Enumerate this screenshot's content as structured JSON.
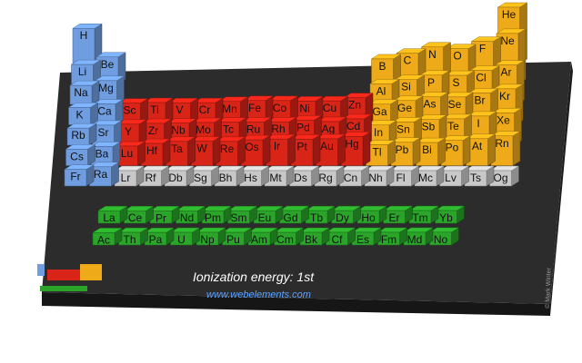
{
  "caption": {
    "title": "Ionization energy: 1st",
    "url": "www.webelements.com"
  },
  "copyright": "© Mark Winter",
  "colors": {
    "s_block": "#6f9de0",
    "d_block": "#d92418",
    "p_block": "#eeaa18",
    "f_block": "#2aa52a",
    "unmeasured": "#c8c8c8",
    "board": "#2c2c2c"
  },
  "main_table": {
    "rows": [
      {
        "period": 1,
        "elements": [
          {
            "symbol": "H",
            "group": 1,
            "block": "s",
            "value": 1312
          },
          {
            "symbol": "He",
            "group": 18,
            "block": "p",
            "value": 2372
          }
        ]
      },
      {
        "period": 2,
        "elements": [
          {
            "symbol": "Li",
            "group": 1,
            "block": "s",
            "value": 520
          },
          {
            "symbol": "Be",
            "group": 2,
            "block": "s",
            "value": 900
          },
          {
            "symbol": "B",
            "group": 13,
            "block": "p",
            "value": 801
          },
          {
            "symbol": "C",
            "group": 14,
            "block": "p",
            "value": 1086
          },
          {
            "symbol": "N",
            "group": 15,
            "block": "p",
            "value": 1402
          },
          {
            "symbol": "O",
            "group": 16,
            "block": "p",
            "value": 1314
          },
          {
            "symbol": "F",
            "group": 17,
            "block": "p",
            "value": 1681
          },
          {
            "symbol": "Ne",
            "group": 18,
            "block": "p",
            "value": 2081
          }
        ]
      },
      {
        "period": 3,
        "elements": [
          {
            "symbol": "Na",
            "group": 1,
            "block": "s",
            "value": 496
          },
          {
            "symbol": "Mg",
            "group": 2,
            "block": "s",
            "value": 738
          },
          {
            "symbol": "Al",
            "group": 13,
            "block": "p",
            "value": 578
          },
          {
            "symbol": "Si",
            "group": 14,
            "block": "p",
            "value": 787
          },
          {
            "symbol": "P",
            "group": 15,
            "block": "p",
            "value": 1012
          },
          {
            "symbol": "S",
            "group": 16,
            "block": "p",
            "value": 1000
          },
          {
            "symbol": "Cl",
            "group": 17,
            "block": "p",
            "value": 1251
          },
          {
            "symbol": "Ar",
            "group": 18,
            "block": "p",
            "value": 1521
          }
        ]
      },
      {
        "period": 4,
        "elements": [
          {
            "symbol": "K",
            "group": 1,
            "block": "s",
            "value": 419
          },
          {
            "symbol": "Ca",
            "group": 2,
            "block": "s",
            "value": 590
          },
          {
            "symbol": "Sc",
            "group": 3,
            "block": "d",
            "value": 633
          },
          {
            "symbol": "Ti",
            "group": 4,
            "block": "d",
            "value": 659
          },
          {
            "symbol": "V",
            "group": 5,
            "block": "d",
            "value": 651
          },
          {
            "symbol": "Cr",
            "group": 6,
            "block": "d",
            "value": 653
          },
          {
            "symbol": "Mn",
            "group": 7,
            "block": "d",
            "value": 717
          },
          {
            "symbol": "Fe",
            "group": 8,
            "block": "d",
            "value": 763
          },
          {
            "symbol": "Co",
            "group": 9,
            "block": "d",
            "value": 760
          },
          {
            "symbol": "Ni",
            "group": 10,
            "block": "d",
            "value": 737
          },
          {
            "symbol": "Cu",
            "group": 11,
            "block": "d",
            "value": 745
          },
          {
            "symbol": "Zn",
            "group": 12,
            "block": "d",
            "value": 906
          },
          {
            "symbol": "Ga",
            "group": 13,
            "block": "p",
            "value": 579
          },
          {
            "symbol": "Ge",
            "group": 14,
            "block": "p",
            "value": 762
          },
          {
            "symbol": "As",
            "group": 15,
            "block": "p",
            "value": 947
          },
          {
            "symbol": "Se",
            "group": 16,
            "block": "p",
            "value": 941
          },
          {
            "symbol": "Br",
            "group": 17,
            "block": "p",
            "value": 1140
          },
          {
            "symbol": "Kr",
            "group": 18,
            "block": "p",
            "value": 1351
          }
        ]
      },
      {
        "period": 5,
        "elements": [
          {
            "symbol": "Rb",
            "group": 1,
            "block": "s",
            "value": 403
          },
          {
            "symbol": "Sr",
            "group": 2,
            "block": "s",
            "value": 550
          },
          {
            "symbol": "Y",
            "group": 3,
            "block": "d",
            "value": 600
          },
          {
            "symbol": "Zr",
            "group": 4,
            "block": "d",
            "value": 640
          },
          {
            "symbol": "Nb",
            "group": 5,
            "block": "d",
            "value": 652
          },
          {
            "symbol": "Mo",
            "group": 6,
            "block": "d",
            "value": 684
          },
          {
            "symbol": "Tc",
            "group": 7,
            "block": "d",
            "value": 702
          },
          {
            "symbol": "Ru",
            "group": 8,
            "block": "d",
            "value": 710
          },
          {
            "symbol": "Rh",
            "group": 9,
            "block": "d",
            "value": 720
          },
          {
            "symbol": "Pd",
            "group": 10,
            "block": "d",
            "value": 804
          },
          {
            "symbol": "Ag",
            "group": 11,
            "block": "d",
            "value": 731
          },
          {
            "symbol": "Cd",
            "group": 12,
            "block": "d",
            "value": 868
          },
          {
            "symbol": "In",
            "group": 13,
            "block": "p",
            "value": 558
          },
          {
            "symbol": "Sn",
            "group": 14,
            "block": "p",
            "value": 709
          },
          {
            "symbol": "Sb",
            "group": 15,
            "block": "p",
            "value": 834
          },
          {
            "symbol": "Te",
            "group": 16,
            "block": "p",
            "value": 869
          },
          {
            "symbol": "I",
            "group": 17,
            "block": "p",
            "value": 1008
          },
          {
            "symbol": "Xe",
            "group": 18,
            "block": "p",
            "value": 1170
          }
        ]
      },
      {
        "period": 6,
        "elements": [
          {
            "symbol": "Cs",
            "group": 1,
            "block": "s",
            "value": 376
          },
          {
            "symbol": "Ba",
            "group": 2,
            "block": "s",
            "value": 503
          },
          {
            "symbol": "Lu",
            "group": 3,
            "block": "d",
            "value": 524
          },
          {
            "symbol": "Hf",
            "group": 4,
            "block": "d",
            "value": 659
          },
          {
            "symbol": "Ta",
            "group": 5,
            "block": "d",
            "value": 761
          },
          {
            "symbol": "W",
            "group": 6,
            "block": "d",
            "value": 770
          },
          {
            "symbol": "Re",
            "group": 7,
            "block": "d",
            "value": 760
          },
          {
            "symbol": "Os",
            "group": 8,
            "block": "d",
            "value": 840
          },
          {
            "symbol": "Ir",
            "group": 9,
            "block": "d",
            "value": 880
          },
          {
            "symbol": "Pt",
            "group": 10,
            "block": "d",
            "value": 870
          },
          {
            "symbol": "Au",
            "group": 11,
            "block": "d",
            "value": 890
          },
          {
            "symbol": "Hg",
            "group": 12,
            "block": "d",
            "value": 1007
          },
          {
            "symbol": "Tl",
            "group": 13,
            "block": "p",
            "value": 589
          },
          {
            "symbol": "Pb",
            "group": 14,
            "block": "p",
            "value": 716
          },
          {
            "symbol": "Bi",
            "group": 15,
            "block": "p",
            "value": 703
          },
          {
            "symbol": "Po",
            "group": 16,
            "block": "p",
            "value": 812
          },
          {
            "symbol": "At",
            "group": 17,
            "block": "p",
            "value": 899
          },
          {
            "symbol": "Rn",
            "group": 18,
            "block": "p",
            "value": 1037
          }
        ]
      },
      {
        "period": 7,
        "elements": [
          {
            "symbol": "Fr",
            "group": 1,
            "block": "s",
            "value": 380
          },
          {
            "symbol": "Ra",
            "group": 2,
            "block": "s",
            "value": 509
          },
          {
            "symbol": "Lr",
            "group": 3,
            "block": "none",
            "value": 0
          },
          {
            "symbol": "Rf",
            "group": 4,
            "block": "none",
            "value": 0
          },
          {
            "symbol": "Db",
            "group": 5,
            "block": "none",
            "value": 0
          },
          {
            "symbol": "Sg",
            "group": 6,
            "block": "none",
            "value": 0
          },
          {
            "symbol": "Bh",
            "group": 7,
            "block": "none",
            "value": 0
          },
          {
            "symbol": "Hs",
            "group": 8,
            "block": "none",
            "value": 0
          },
          {
            "symbol": "Mt",
            "group": 9,
            "block": "none",
            "value": 0
          },
          {
            "symbol": "Ds",
            "group": 10,
            "block": "none",
            "value": 0
          },
          {
            "symbol": "Rg",
            "group": 11,
            "block": "none",
            "value": 0
          },
          {
            "symbol": "Cn",
            "group": 12,
            "block": "none",
            "value": 0
          },
          {
            "symbol": "Nh",
            "group": 13,
            "block": "none",
            "value": 0
          },
          {
            "symbol": "Fl",
            "group": 14,
            "block": "none",
            "value": 0
          },
          {
            "symbol": "Mc",
            "group": 15,
            "block": "none",
            "value": 0
          },
          {
            "symbol": "Lv",
            "group": 16,
            "block": "none",
            "value": 0
          },
          {
            "symbol": "Ts",
            "group": 17,
            "block": "none",
            "value": 0
          },
          {
            "symbol": "Og",
            "group": 18,
            "block": "none",
            "value": 0
          }
        ]
      }
    ]
  },
  "f_block": {
    "lanthanides": [
      {
        "symbol": "La",
        "value": 538
      },
      {
        "symbol": "Ce",
        "value": 534
      },
      {
        "symbol": "Pr",
        "value": 527
      },
      {
        "symbol": "Nd",
        "value": 533
      },
      {
        "symbol": "Pm",
        "value": 540
      },
      {
        "symbol": "Sm",
        "value": 545
      },
      {
        "symbol": "Eu",
        "value": 547
      },
      {
        "symbol": "Gd",
        "value": 593
      },
      {
        "symbol": "Tb",
        "value": 566
      },
      {
        "symbol": "Dy",
        "value": 573
      },
      {
        "symbol": "Ho",
        "value": 581
      },
      {
        "symbol": "Er",
        "value": 589
      },
      {
        "symbol": "Tm",
        "value": 597
      },
      {
        "symbol": "Yb",
        "value": 603
      }
    ],
    "actinides": [
      {
        "symbol": "Ac",
        "value": 499
      },
      {
        "symbol": "Th",
        "value": 587
      },
      {
        "symbol": "Pa",
        "value": 568
      },
      {
        "symbol": "U",
        "value": 598
      },
      {
        "symbol": "Np",
        "value": 605
      },
      {
        "symbol": "Pu",
        "value": 585
      },
      {
        "symbol": "Am",
        "value": 578
      },
      {
        "symbol": "Cm",
        "value": 581
      },
      {
        "symbol": "Bk",
        "value": 601
      },
      {
        "symbol": "Cf",
        "value": 608
      },
      {
        "symbol": "Es",
        "value": 619
      },
      {
        "symbol": "Fm",
        "value": 627
      },
      {
        "symbol": "Md",
        "value": 635
      },
      {
        "symbol": "No",
        "value": 642
      }
    ]
  }
}
